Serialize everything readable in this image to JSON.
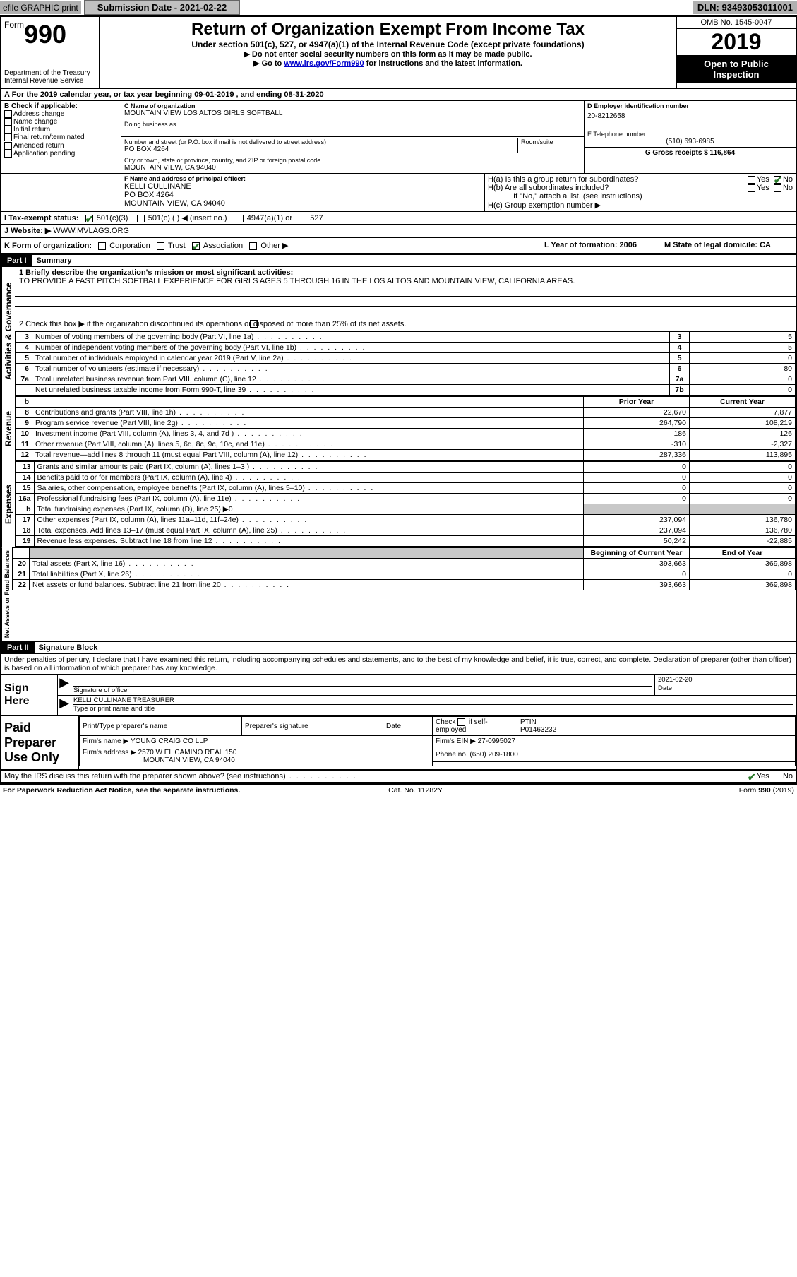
{
  "topbar": {
    "efile": "efile GRAPHIC print",
    "submission_label": "Submission Date - 2021-02-22",
    "dln": "DLN: 93493053011001"
  },
  "header": {
    "form_word": "Form",
    "form_no": "990",
    "dept": "Department of the Treasury\nInternal Revenue Service",
    "title": "Return of Organization Exempt From Income Tax",
    "subtitle": "Under section 501(c), 527, or 4947(a)(1) of the Internal Revenue Code (except private foundations)",
    "instr1": "▶ Do not enter social security numbers on this form as it may be made public.",
    "instr2_pre": "▶ Go to ",
    "instr2_link": "www.irs.gov/Form990",
    "instr2_post": " for instructions and the latest information.",
    "omb": "OMB No. 1545-0047",
    "year": "2019",
    "open": "Open to Public Inspection"
  },
  "period": "A For the 2019 calendar year, or tax year beginning 09-01-2019    , and ending 08-31-2020",
  "colB": {
    "label": "B Check if applicable:",
    "items": [
      "Address change",
      "Name change",
      "Initial return",
      "Final return/terminated",
      "Amended return",
      "Application pending"
    ]
  },
  "colC": {
    "name_label": "C Name of organization",
    "name": "MOUNTAIN VIEW LOS ALTOS GIRLS SOFTBALL",
    "dba_label": "Doing business as",
    "addr_label": "Number and street (or P.O. box if mail is not delivered to street address)",
    "room_label": "Room/suite",
    "addr": "PO BOX 4264",
    "city_label": "City or town, state or province, country, and ZIP or foreign postal code",
    "city": "MOUNTAIN VIEW, CA  94040"
  },
  "colD": {
    "ein_label": "D Employer identification number",
    "ein": "20-8212658",
    "phone_label": "E Telephone number",
    "phone": "(510) 693-6985",
    "gross_label": "G Gross receipts $ 116,864"
  },
  "officer": {
    "label": "F  Name and address of principal officer:",
    "name": "KELLI CULLINANE",
    "addr1": "PO BOX 4264",
    "addr2": "MOUNTAIN VIEW, CA  94040"
  },
  "H": {
    "a": "H(a)  Is this a group return for subordinates?",
    "b": "H(b)  Are all subordinates included?",
    "b_note": "If \"No,\" attach a list. (see instructions)",
    "c": "H(c)  Group exemption number ▶"
  },
  "I": {
    "label": "I   Tax-exempt status:",
    "o1": "501(c)(3)",
    "o2": "501(c) (  ) ◀ (insert no.)",
    "o3": "4947(a)(1) or",
    "o4": "527"
  },
  "J": {
    "label": "J   Website: ▶",
    "val": "WWW.MVLAGS.ORG"
  },
  "K": {
    "label": "K Form of organization:",
    "o1": "Corporation",
    "o2": "Trust",
    "o3": "Association",
    "o4": "Other ▶"
  },
  "L": {
    "label": "L Year of formation: 2006"
  },
  "M": {
    "label": "M State of legal domicile: CA"
  },
  "part1": {
    "hdr": "Part I",
    "title": "Summary"
  },
  "summary": {
    "q1": "1  Briefly describe the organization's mission or most significant activities:",
    "mission": "TO PROVIDE A FAST PITCH SOFTBALL EXPERIENCE FOR GIRLS AGES 5 THROUGH 16 IN THE LOS ALTOS AND MOUNTAIN VIEW, CALIFORNIA AREAS.",
    "q2": "2   Check this box ▶        if the organization discontinued its operations or disposed of more than 25% of its net assets."
  },
  "gov_rows": [
    {
      "no": "3",
      "desc": "Number of voting members of the governing body (Part VI, line 1a)",
      "code": "3",
      "val": "5"
    },
    {
      "no": "4",
      "desc": "Number of independent voting members of the governing body (Part VI, line 1b)",
      "code": "4",
      "val": "5"
    },
    {
      "no": "5",
      "desc": "Total number of individuals employed in calendar year 2019 (Part V, line 2a)",
      "code": "5",
      "val": "0"
    },
    {
      "no": "6",
      "desc": "Total number of volunteers (estimate if necessary)",
      "code": "6",
      "val": "80"
    },
    {
      "no": "7a",
      "desc": "Total unrelated business revenue from Part VIII, column (C), line 12",
      "code": "7a",
      "val": "0"
    },
    {
      "no": "",
      "desc": "Net unrelated business taxable income from Form 990-T, line 39",
      "code": "7b",
      "val": "0"
    }
  ],
  "pycy_hdr": {
    "py": "Prior Year",
    "cy": "Current Year"
  },
  "revenue_rows": [
    {
      "no": "8",
      "desc": "Contributions and grants (Part VIII, line 1h)",
      "py": "22,670",
      "cy": "7,877"
    },
    {
      "no": "9",
      "desc": "Program service revenue (Part VIII, line 2g)",
      "py": "264,790",
      "cy": "108,219"
    },
    {
      "no": "10",
      "desc": "Investment income (Part VIII, column (A), lines 3, 4, and 7d )",
      "py": "186",
      "cy": "126"
    },
    {
      "no": "11",
      "desc": "Other revenue (Part VIII, column (A), lines 5, 6d, 8c, 9c, 10c, and 11e)",
      "py": "-310",
      "cy": "-2,327"
    },
    {
      "no": "12",
      "desc": "Total revenue—add lines 8 through 11 (must equal Part VIII, column (A), line 12)",
      "py": "287,336",
      "cy": "113,895"
    }
  ],
  "expense_rows": [
    {
      "no": "13",
      "desc": "Grants and similar amounts paid (Part IX, column (A), lines 1–3 )",
      "py": "0",
      "cy": "0"
    },
    {
      "no": "14",
      "desc": "Benefits paid to or for members (Part IX, column (A), line 4)",
      "py": "0",
      "cy": "0"
    },
    {
      "no": "15",
      "desc": "Salaries, other compensation, employee benefits (Part IX, column (A), lines 5–10)",
      "py": "0",
      "cy": "0"
    },
    {
      "no": "16a",
      "desc": "Professional fundraising fees (Part IX, column (A), line 11e)",
      "py": "0",
      "cy": "0"
    },
    {
      "no": "b",
      "desc": "Total fundraising expenses (Part IX, column (D), line 25) ▶0",
      "py": "",
      "cy": "",
      "shade": true
    },
    {
      "no": "17",
      "desc": "Other expenses (Part IX, column (A), lines 11a–11d, 11f–24e)",
      "py": "237,094",
      "cy": "136,780"
    },
    {
      "no": "18",
      "desc": "Total expenses. Add lines 13–17 (must equal Part IX, column (A), line 25)",
      "py": "237,094",
      "cy": "136,780"
    },
    {
      "no": "19",
      "desc": "Revenue less expenses. Subtract line 18 from line 12",
      "py": "50,242",
      "cy": "-22,885"
    }
  ],
  "net_hdr": {
    "py": "Beginning of Current Year",
    "cy": "End of Year"
  },
  "net_rows": [
    {
      "no": "20",
      "desc": "Total assets (Part X, line 16)",
      "py": "393,663",
      "cy": "369,898"
    },
    {
      "no": "21",
      "desc": "Total liabilities (Part X, line 26)",
      "py": "0",
      "cy": "0"
    },
    {
      "no": "22",
      "desc": "Net assets or fund balances. Subtract line 21 from line 20",
      "py": "393,663",
      "cy": "369,898"
    }
  ],
  "part2": {
    "hdr": "Part II",
    "title": "Signature Block"
  },
  "sig": {
    "penalty": "Under penalties of perjury, I declare that I have examined this return, including accompanying schedules and statements, and to the best of my knowledge and belief, it is true, correct, and complete. Declaration of preparer (other than officer) is based on all information of which preparer has any knowledge.",
    "sign_here": "Sign Here",
    "sig_officer": "Signature of officer",
    "date_label": "Date",
    "date": "2021-02-20",
    "name_title": "KELLI CULLINANE  TREASURER",
    "type_label": "Type or print name and title"
  },
  "paid": {
    "label": "Paid Preparer Use Only",
    "r1c1": "Print/Type preparer's name",
    "r1c2": "Preparer's signature",
    "r1c3": "Date",
    "r1c4_a": "Check        if self-employed",
    "r1c5": "PTIN",
    "ptin": "P01463232",
    "firm_name_l": "Firm's name    ▶",
    "firm_name": "YOUNG CRAIG CO LLP",
    "firm_ein_l": "Firm's EIN ▶",
    "firm_ein": "27-0995027",
    "firm_addr_l": "Firm's address ▶",
    "firm_addr1": "2570 W EL CAMINO REAL 150",
    "firm_addr2": "MOUNTAIN VIEW, CA  94040",
    "phone_l": "Phone no.",
    "phone": "(650) 209-1800"
  },
  "discuss": "May the IRS discuss this return with the preparer shown above? (see instructions)",
  "footer": {
    "pra": "For Paperwork Reduction Act Notice, see the separate instructions.",
    "cat": "Cat. No. 11282Y",
    "form": "Form 990 (2019)"
  },
  "yes": "Yes",
  "no": "No",
  "vlabels": {
    "gov": "Activities & Governance",
    "rev": "Revenue",
    "exp": "Expenses",
    "net": "Net Assets or Fund Balances"
  }
}
